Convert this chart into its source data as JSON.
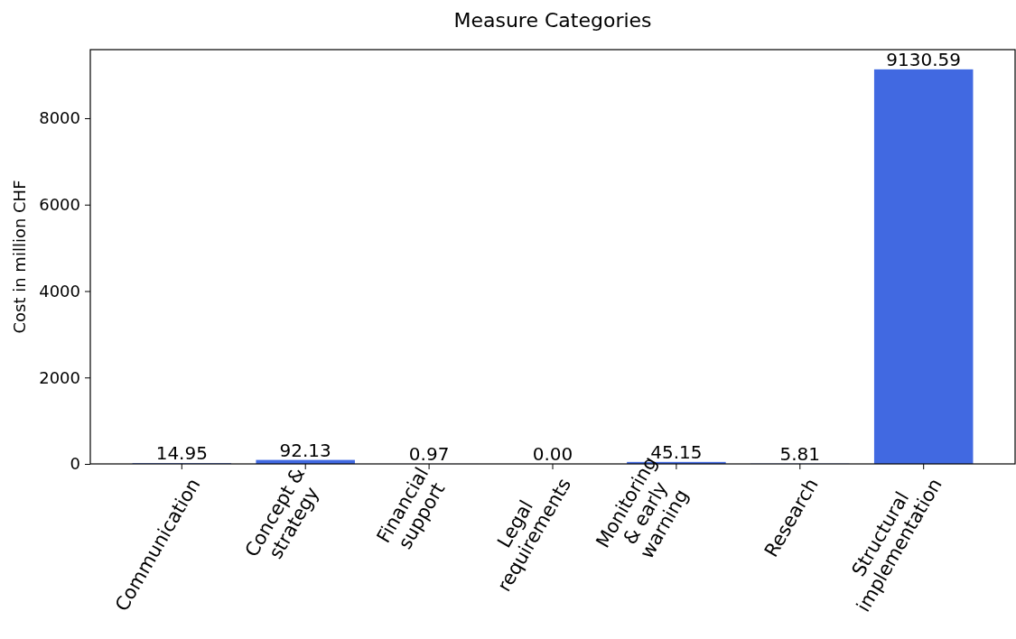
{
  "chart_data": {
    "type": "bar",
    "title": "Measure Categories",
    "ylabel": "Cost in million CHF",
    "categories": [
      "Communication",
      "Concept &\nstrategy",
      "Financial\nsupport",
      "Legal\nrequirements",
      "Monitoring\n& early\nwarning",
      "Research",
      "Structural\nimplementation"
    ],
    "values": [
      14.95,
      92.13,
      0.97,
      0.0,
      45.15,
      5.81,
      9130.59
    ],
    "value_labels": [
      "14.95",
      "92.13",
      "0.97",
      "0.00",
      "45.15",
      "5.81",
      "9130.59"
    ],
    "color": "#4169e1",
    "ylim": [
      0,
      9587.12
    ],
    "yticks": [
      0,
      2000,
      4000,
      6000,
      8000
    ],
    "grid": false
  }
}
